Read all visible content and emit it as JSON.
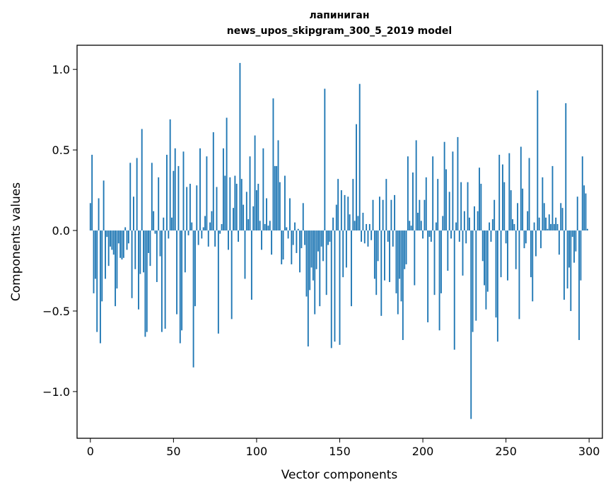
{
  "chart_data": {
    "type": "bar",
    "title_line1": "лапиниган",
    "title_line2": "news_upos_skipgram_300_5_2019 model",
    "xlabel": "Vector components",
    "ylabel": "Components values",
    "xlim": [
      -8,
      308
    ],
    "ylim": [
      -1.29,
      1.15
    ],
    "xticks": [
      0,
      50,
      100,
      150,
      200,
      250,
      300
    ],
    "yticks": [
      -1.0,
      -0.5,
      0.0,
      0.5,
      1.0
    ],
    "ytick_labels": [
      "−1.0",
      "−0.5",
      "0.0",
      "0.5",
      "1.0"
    ],
    "bar_color": "#1f77b4",
    "values": [
      0.17,
      0.47,
      -0.39,
      -0.3,
      -0.63,
      0.2,
      -0.7,
      -0.44,
      0.31,
      -0.3,
      -0.04,
      -0.22,
      -0.1,
      -0.12,
      -0.15,
      -0.47,
      -0.36,
      -0.08,
      -0.17,
      -0.18,
      -0.17,
      0.02,
      -0.12,
      -0.08,
      0.42,
      -0.42,
      0.21,
      -0.24,
      0.45,
      -0.49,
      -0.27,
      0.63,
      -0.26,
      -0.66,
      -0.63,
      -0.14,
      -0.22,
      0.42,
      0.12,
      -0.02,
      -0.32,
      0.33,
      -0.16,
      -0.63,
      0.08,
      -0.61,
      0.47,
      -0.05,
      0.69,
      0.08,
      0.37,
      0.51,
      -0.52,
      0.4,
      -0.7,
      -0.62,
      0.49,
      -0.26,
      0.27,
      -0.03,
      0.29,
      0.05,
      -0.85,
      -0.47,
      0.28,
      -0.09,
      0.51,
      -0.05,
      0.02,
      0.09,
      0.46,
      -0.1,
      0.05,
      0.12,
      0.61,
      -0.1,
      0.27,
      -0.64,
      -0.02,
      0.04,
      0.51,
      0.34,
      0.7,
      -0.12,
      0.33,
      -0.55,
      0.14,
      0.34,
      0.29,
      -0.07,
      1.04,
      0.32,
      0.16,
      -0.3,
      0.24,
      0.07,
      0.46,
      -0.43,
      0.15,
      0.59,
      0.25,
      0.29,
      0.06,
      -0.12,
      0.51,
      0.04,
      0.2,
      0.03,
      0.06,
      -0.15,
      0.82,
      0.4,
      0.4,
      0.56,
      0.3,
      -0.21,
      -0.18,
      0.34,
      0.02,
      -0.05,
      0.2,
      -0.21,
      -0.09,
      0.05,
      -0.14,
      0.01,
      -0.26,
      -0.11,
      0.17,
      -0.09,
      -0.41,
      -0.72,
      -0.37,
      -0.23,
      -0.31,
      -0.52,
      -0.24,
      -0.13,
      -0.47,
      -0.1,
      -0.19,
      0.88,
      -0.4,
      -0.09,
      -0.07,
      -0.73,
      0.08,
      -0.69,
      0.16,
      0.32,
      -0.71,
      0.25,
      -0.29,
      0.22,
      -0.23,
      0.21,
      0.1,
      -0.47,
      0.32,
      0.06,
      0.66,
      0.09,
      0.91,
      -0.07,
      0.11,
      -0.08,
      0.04,
      -0.1,
      0.04,
      -0.06,
      0.19,
      -0.3,
      -0.4,
      -0.19,
      0.21,
      -0.53,
      0.19,
      -0.31,
      0.32,
      -0.07,
      -0.32,
      0.19,
      -0.1,
      0.22,
      -0.39,
      -0.52,
      -0.3,
      -0.44,
      -0.68,
      -0.24,
      -0.21,
      0.46,
      0.06,
      0.03,
      0.36,
      -0.34,
      0.56,
      0.11,
      0.19,
      0.06,
      -0.05,
      0.19,
      0.33,
      -0.57,
      -0.04,
      -0.07,
      0.46,
      -0.4,
      0.05,
      0.32,
      -0.62,
      -0.39,
      0.09,
      0.55,
      0.38,
      -0.25,
      0.24,
      -0.05,
      0.49,
      -0.74,
      0.05,
      0.58,
      -0.07,
      0.3,
      -0.28,
      0.12,
      -0.08,
      0.3,
      0.08,
      -1.17,
      -0.63,
      0.15,
      -0.56,
      0.12,
      0.39,
      0.29,
      -0.19,
      -0.34,
      -0.49,
      -0.38,
      0.05,
      -0.07,
      0.07,
      0.19,
      -0.54,
      -0.69,
      0.47,
      -0.29,
      0.41,
      0.3,
      -0.08,
      -0.31,
      0.48,
      0.25,
      0.07,
      0.04,
      -0.24,
      0.17,
      -0.55,
      0.52,
      0.26,
      -0.11,
      -0.08,
      0.12,
      0.45,
      -0.29,
      -0.44,
      0.05,
      -0.16,
      0.87,
      0.08,
      -0.11,
      0.33,
      0.17,
      0.08,
      0.01,
      0.1,
      0.04,
      0.4,
      0.04,
      0.08,
      0.04,
      -0.15,
      0.17,
      0.14,
      -0.43,
      0.79,
      -0.36,
      -0.23,
      -0.5,
      -0.04,
      -0.2,
      -0.13,
      0.21,
      -0.68,
      -0.31,
      0.46,
      0.28,
      0.23,
      0.01
    ]
  }
}
